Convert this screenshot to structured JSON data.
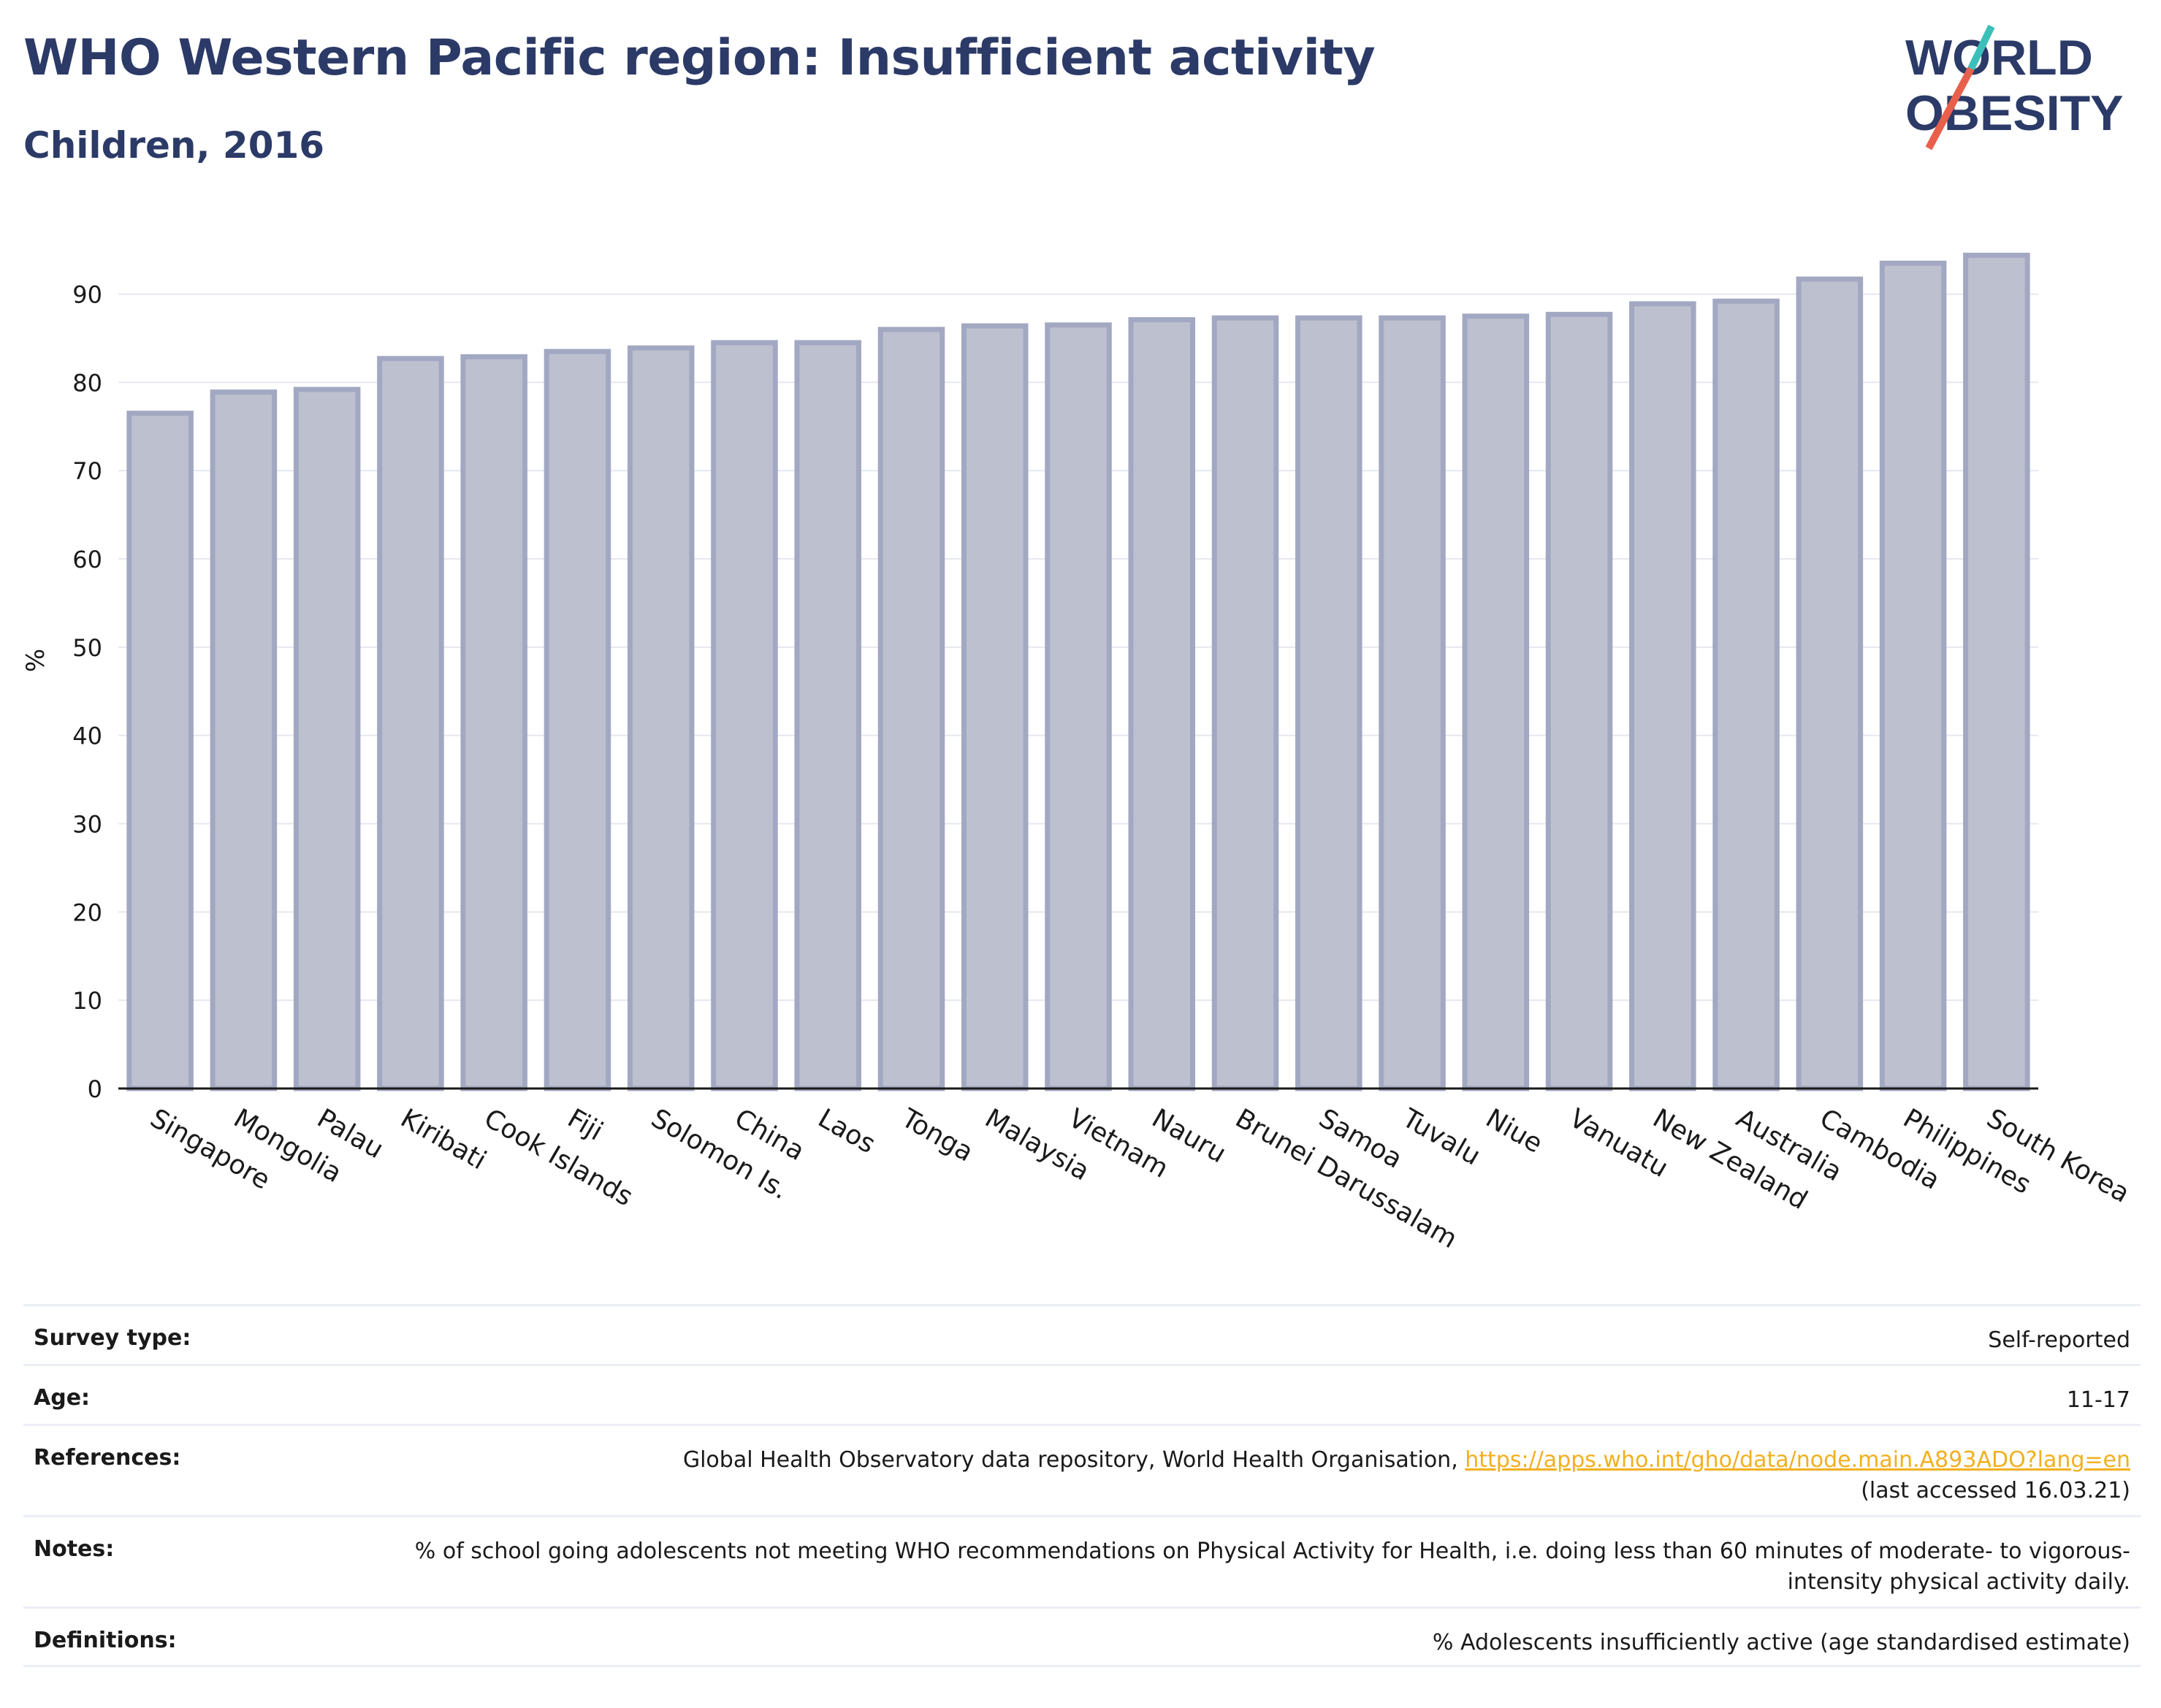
{
  "header": {
    "title": "WHO Western Pacific region: Insufficient activity",
    "subtitle": "Children, 2016"
  },
  "logo": {
    "line1": "WORLD",
    "line2": "OBESITY",
    "colors": {
      "text": "#2b3a67",
      "teal": "#3bbfb9",
      "coral": "#e8604c"
    }
  },
  "chart_data": {
    "type": "bar",
    "title": "WHO Western Pacific region: Insufficient activity",
    "subtitle": "Children, 2016",
    "ylabel": "%",
    "xlabel": "",
    "ylim": [
      0,
      97
    ],
    "yticks": [
      0,
      10,
      20,
      30,
      40,
      50,
      60,
      70,
      80,
      90
    ],
    "grid": true,
    "categories": [
      "Singapore",
      "Mongolia",
      "Palau",
      "Kiribati",
      "Cook Islands",
      "Fiji",
      "Solomon Is.",
      "China",
      "Laos",
      "Tonga",
      "Malaysia",
      "Vietnam",
      "Nauru",
      "Brunei Darussalam",
      "Samoa",
      "Tuvalu",
      "Niue",
      "Vanuatu",
      "New Zealand",
      "Australia",
      "Cambodia",
      "Philippines",
      "South Korea"
    ],
    "values": [
      76.5,
      78.9,
      79.2,
      82.7,
      82.9,
      83.5,
      83.9,
      84.5,
      84.5,
      86.0,
      86.4,
      86.5,
      87.1,
      87.3,
      87.3,
      87.3,
      87.5,
      87.7,
      88.9,
      89.2,
      91.7,
      93.5,
      94.4
    ],
    "colors": {
      "bar_fill": "#bdc0cf",
      "bar_edge": "#a3a8c2",
      "axis": "#1a1a1a",
      "grid": "#e6e8ef"
    }
  },
  "meta": {
    "survey_type": {
      "label": "Survey type:",
      "value": "Self-reported"
    },
    "age": {
      "label": "Age:",
      "value": "11-17"
    },
    "references": {
      "label": "References:",
      "text": "Global Health Observatory data repository, World Health Organisation, ",
      "link": "https://apps.who.int/gho/data/node.main.A893ADO?lang=en",
      "accessed": "(last accessed 16.03.21)"
    },
    "notes": {
      "label": "Notes:",
      "value": "% of school going adolescents not meeting WHO recommendations on Physical Activity for Health, i.e. doing less than 60 minutes of moderate- to vigorous-intensity physical activity daily."
    },
    "definitions": {
      "label": "Definitions:",
      "value": "% Adolescents insufficiently active (age standardised estimate)"
    }
  }
}
